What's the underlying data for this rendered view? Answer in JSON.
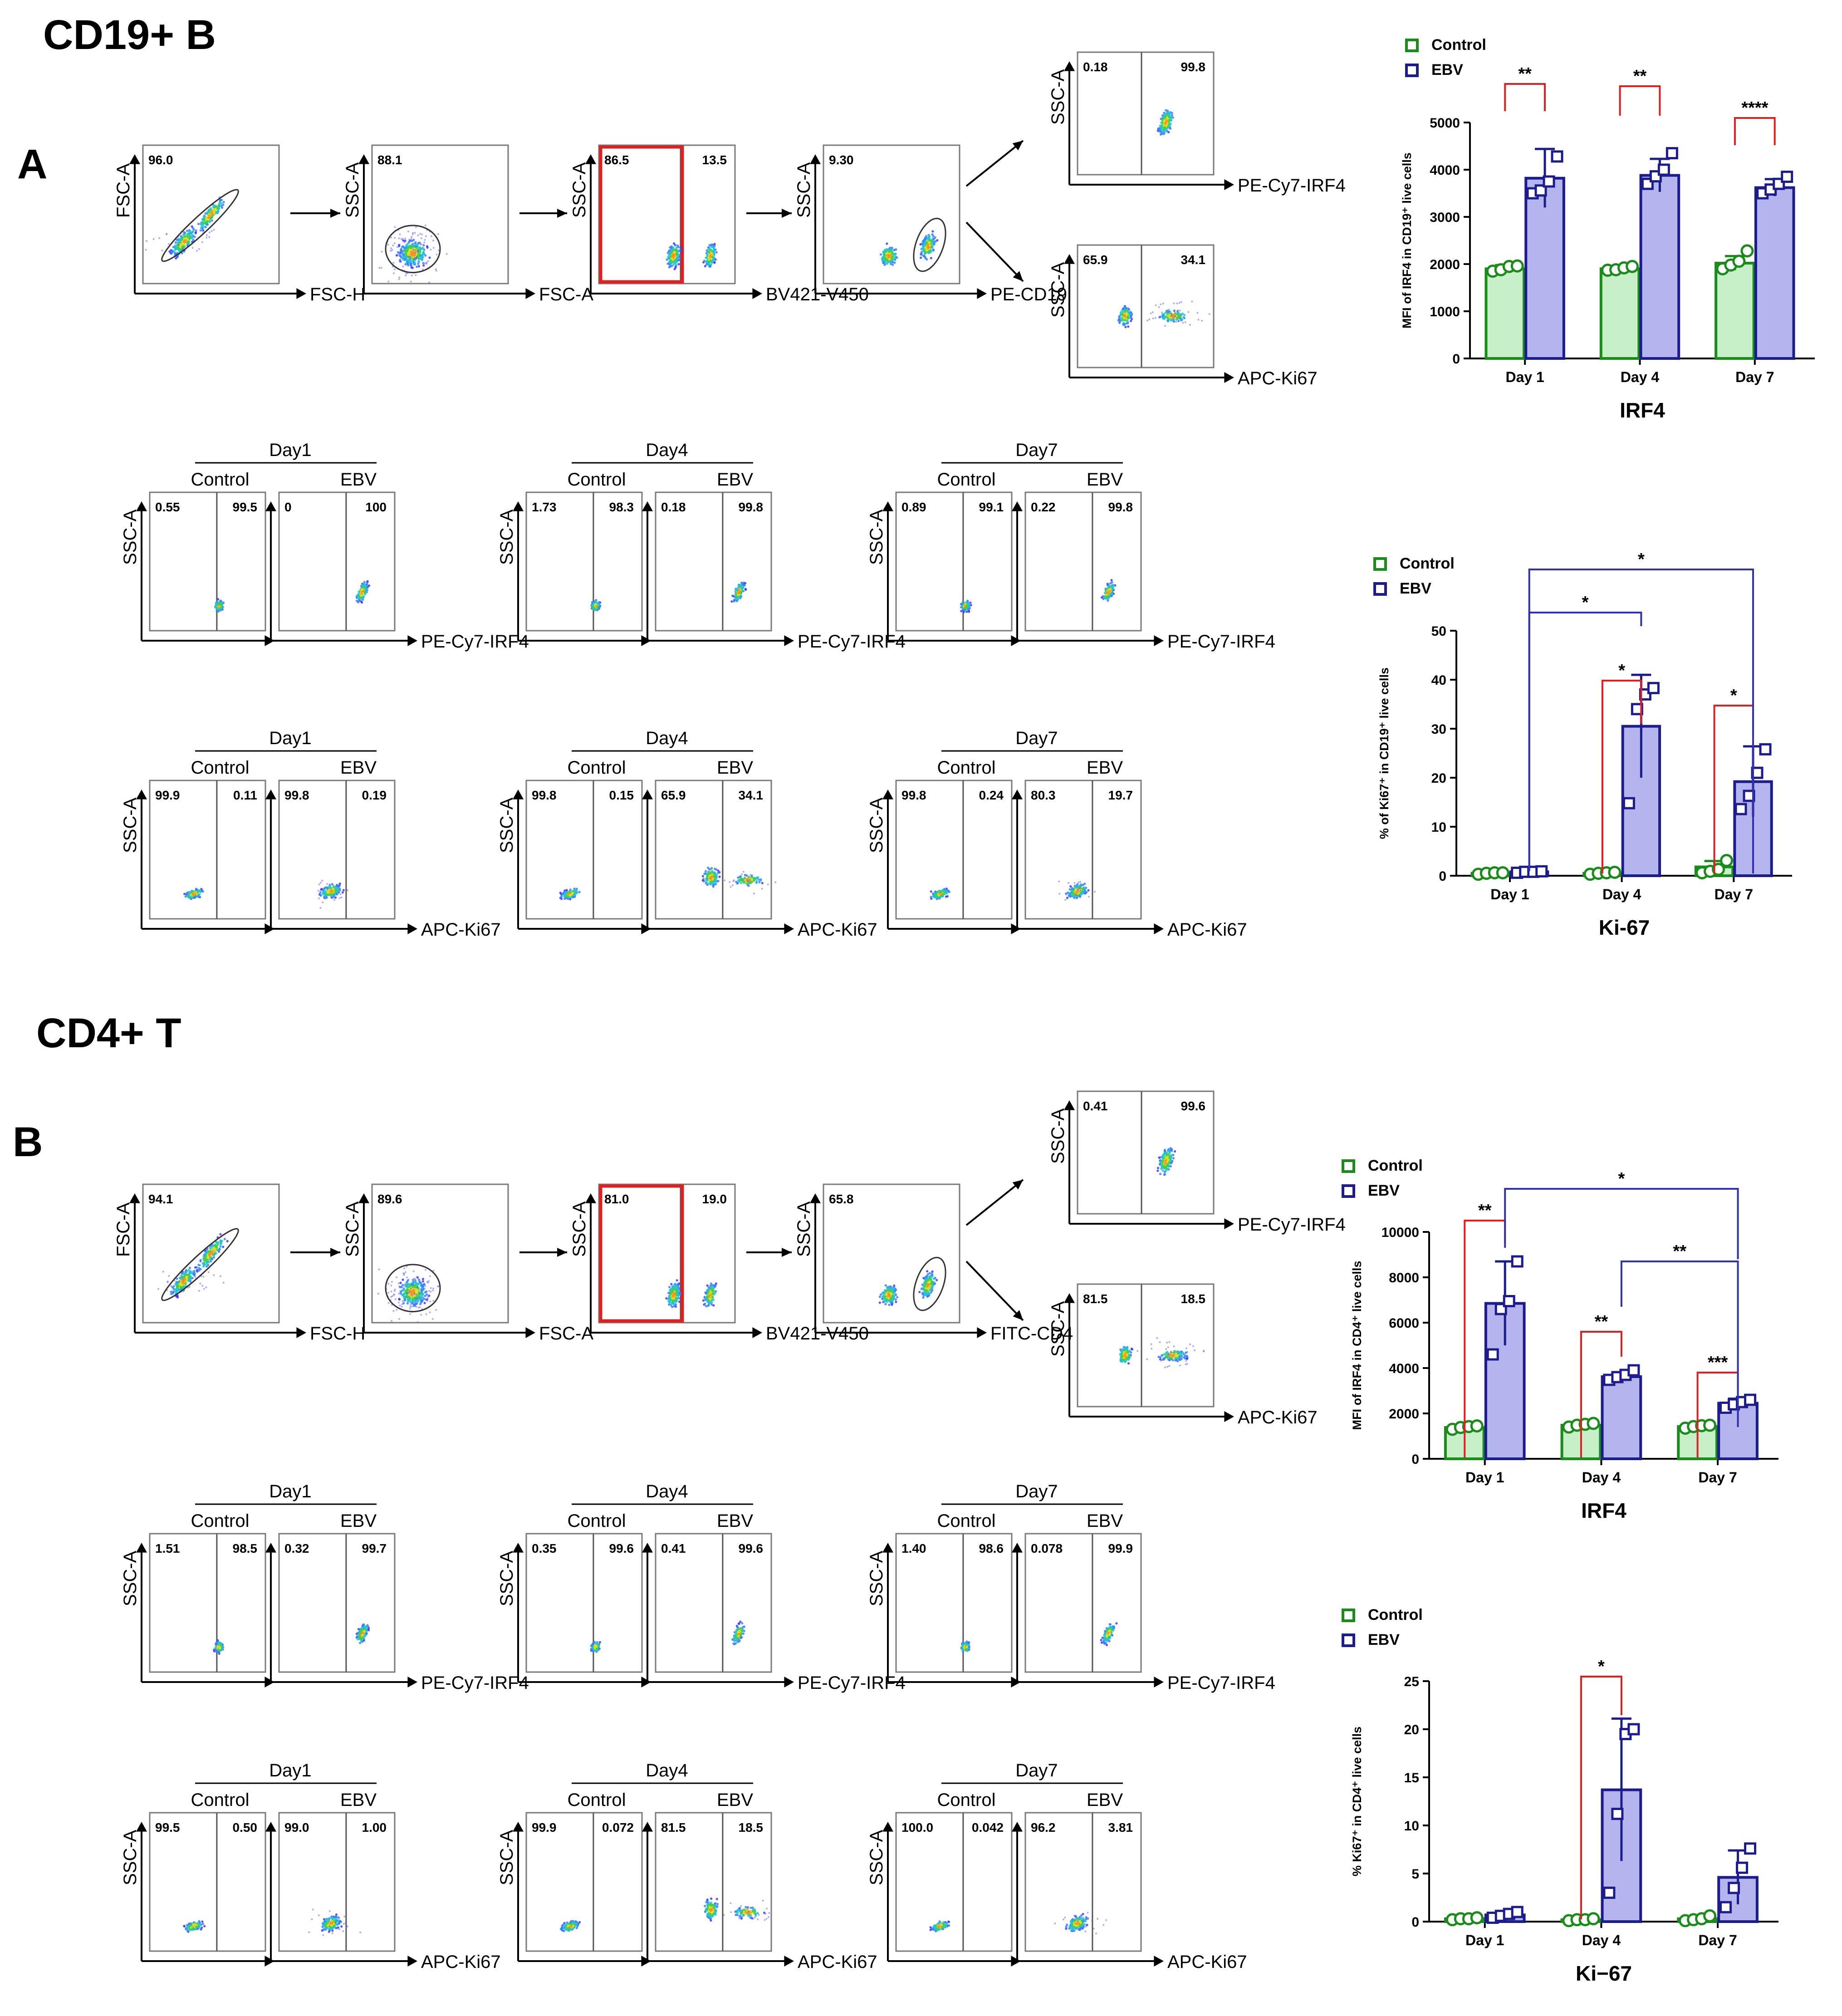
{
  "section_a": {
    "title": "CD19+ B",
    "letter": "A",
    "gating": [
      {
        "x_axis": "FSC-H",
        "y_axis": "FSC-A",
        "values": [
          "96.0"
        ],
        "red_box": false
      },
      {
        "x_axis": "FSC-A",
        "y_axis": "SSC-A",
        "values": [
          "88.1"
        ],
        "red_box": false
      },
      {
        "x_axis": "BV421-V450",
        "y_axis": "SSC-A",
        "values": [
          "86.5",
          "13.5"
        ],
        "red_box": true
      },
      {
        "x_axis": "PE-CD19",
        "y_axis": "SSC-A",
        "values": [
          "9.30"
        ],
        "red_box": false
      }
    ],
    "final_top": {
      "x_axis": "PE-Cy7-IRF4",
      "y_axis": "SSC-A",
      "values": [
        "0.18",
        "99.8"
      ]
    },
    "final_bottom": {
      "x_axis": "APC-Ki67",
      "y_axis": "SSC-A",
      "values": [
        "65.9",
        "34.1"
      ]
    },
    "irf4_rows": [
      {
        "day": "Day1",
        "control": "Control",
        "ebv": "EBV",
        "x_axis": "PE-Cy7-IRF4",
        "y_axis": "SSC-A",
        "ctrl_values": [
          "0.55",
          "99.5"
        ],
        "ebv_values": [
          "0",
          "100"
        ]
      },
      {
        "day": "Day4",
        "control": "Control",
        "ebv": "EBV",
        "x_axis": "PE-Cy7-IRF4",
        "y_axis": "SSC-A",
        "ctrl_values": [
          "1.73",
          "98.3"
        ],
        "ebv_values": [
          "0.18",
          "99.8"
        ]
      },
      {
        "day": "Day7",
        "control": "Control",
        "ebv": "EBV",
        "x_axis": "PE-Cy7-IRF4",
        "y_axis": "SSC-A",
        "ctrl_values": [
          "0.89",
          "99.1"
        ],
        "ebv_values": [
          "0.22",
          "99.8"
        ]
      }
    ],
    "ki67_rows": [
      {
        "day": "Day1",
        "control": "Control",
        "ebv": "EBV",
        "x_axis": "APC-Ki67",
        "y_axis": "SSC-A",
        "ctrl_values": [
          "99.9",
          "0.11"
        ],
        "ebv_values": [
          "99.8",
          "0.19"
        ]
      },
      {
        "day": "Day4",
        "control": "Control",
        "ebv": "EBV",
        "x_axis": "APC-Ki67",
        "y_axis": "SSC-A",
        "ctrl_values": [
          "99.8",
          "0.15"
        ],
        "ebv_values": [
          "65.9",
          "34.1"
        ]
      },
      {
        "day": "Day7",
        "control": "Control",
        "ebv": "EBV",
        "x_axis": "APC-Ki67",
        "y_axis": "SSC-A",
        "ctrl_values": [
          "99.8",
          "0.24"
        ],
        "ebv_values": [
          "80.3",
          "19.7"
        ]
      }
    ]
  },
  "section_b": {
    "title": "CD4+ T",
    "letter": "B",
    "gating": [
      {
        "x_axis": "FSC-H",
        "y_axis": "FSC-A",
        "values": [
          "94.1"
        ],
        "red_box": false
      },
      {
        "x_axis": "FSC-A",
        "y_axis": "SSC-A",
        "values": [
          "89.6"
        ],
        "red_box": false
      },
      {
        "x_axis": "BV421-V450",
        "y_axis": "SSC-A",
        "values": [
          "81.0",
          "19.0"
        ],
        "red_box": true
      },
      {
        "x_axis": "FITC-CD4",
        "y_axis": "SSC-A",
        "values": [
          "65.8"
        ],
        "red_box": false
      }
    ],
    "final_top": {
      "x_axis": "PE-Cy7-IRF4",
      "y_axis": "SSC-A",
      "values": [
        "0.41",
        "99.6"
      ]
    },
    "final_bottom": {
      "x_axis": "APC-Ki67",
      "y_axis": "SSC-A",
      "values": [
        "81.5",
        "18.5"
      ]
    },
    "irf4_rows": [
      {
        "day": "Day1",
        "control": "Control",
        "ebv": "EBV",
        "x_axis": "PE-Cy7-IRF4",
        "y_axis": "SSC-A",
        "ctrl_values": [
          "1.51",
          "98.5"
        ],
        "ebv_values": [
          "0.32",
          "99.7"
        ]
      },
      {
        "day": "Day4",
        "control": "Control",
        "ebv": "EBV",
        "x_axis": "PE-Cy7-IRF4",
        "y_axis": "SSC-A",
        "ctrl_values": [
          "0.35",
          "99.6"
        ],
        "ebv_values": [
          "0.41",
          "99.6"
        ]
      },
      {
        "day": "Day7",
        "control": "Control",
        "ebv": "EBV",
        "x_axis": "PE-Cy7-IRF4",
        "y_axis": "SSC-A",
        "ctrl_values": [
          "1.40",
          "98.6"
        ],
        "ebv_values": [
          "0.078",
          "99.9"
        ]
      }
    ],
    "ki67_rows": [
      {
        "day": "Day1",
        "control": "Control",
        "ebv": "EBV",
        "x_axis": "APC-Ki67",
        "y_axis": "SSC-A",
        "ctrl_values": [
          "99.5",
          "0.50"
        ],
        "ebv_values": [
          "99.0",
          "1.00"
        ]
      },
      {
        "day": "Day4",
        "control": "Control",
        "ebv": "EBV",
        "x_axis": "APC-Ki67",
        "y_axis": "SSC-A",
        "ctrl_values": [
          "99.9",
          "0.072"
        ],
        "ebv_values": [
          "81.5",
          "18.5"
        ]
      },
      {
        "day": "Day7",
        "control": "Control",
        "ebv": "EBV",
        "x_axis": "APC-Ki67",
        "y_axis": "SSC-A",
        "ctrl_values": [
          "100.0",
          "0.042"
        ],
        "ebv_values": [
          "96.2",
          "3.81"
        ]
      }
    ]
  },
  "colors": {
    "control_edge": "#1a8c1a",
    "control_fill": "#c8f0c8",
    "ebv_edge": "#1c1c8c",
    "ebv_fill": "#b4b4ee",
    "sig_red": "#e02020",
    "sig_blue": "#3030b0",
    "gate_red": "#e02020"
  },
  "chart_data": [
    {
      "type": "bar",
      "title": "IRF4",
      "ylabel": "MFI of IRF4 in CD19⁺ live cells",
      "categories": [
        "Day 1",
        "Day 4",
        "Day 7"
      ],
      "ylim": [
        0,
        5000
      ],
      "yticks": [
        0,
        1000,
        2000,
        3000,
        4000,
        5000
      ],
      "legend": [
        "Control",
        "EBV"
      ],
      "series": [
        {
          "name": "Control",
          "values": [
            1900,
            1900,
            2020
          ],
          "sd": [
            80,
            60,
            150
          ],
          "points": [
            [
              1850,
              1880,
              1950,
              1960
            ],
            [
              1870,
              1880,
              1920,
              1950
            ],
            [
              1900,
              1980,
              2060,
              2280
            ]
          ]
        },
        {
          "name": "EBV",
          "values": [
            3820,
            3880,
            3620
          ],
          "sd": [
            620,
            350,
            180
          ],
          "points": [
            [
              3500,
              3560,
              3750,
              4280
            ],
            [
              3700,
              3860,
              4000,
              4350
            ],
            [
              3500,
              3580,
              3700,
              3850
            ]
          ]
        }
      ],
      "significance": [
        {
          "label": "**",
          "from": [
            0,
            0
          ],
          "to": [
            0,
            1
          ],
          "color": "red"
        },
        {
          "label": "**",
          "from": [
            1,
            0
          ],
          "to": [
            1,
            1
          ],
          "color": "red"
        },
        {
          "label": "****",
          "from": [
            2,
            0
          ],
          "to": [
            2,
            1
          ],
          "color": "red"
        }
      ]
    },
    {
      "type": "bar",
      "title": "Ki-67",
      "ylabel": "% of Ki67⁺ in CD19⁺ live cells",
      "categories": [
        "Day 1",
        "Day 4",
        "Day 7"
      ],
      "ylim": [
        0,
        50
      ],
      "yticks": [
        0,
        10,
        20,
        30,
        40,
        50
      ],
      "legend": [
        "Control",
        "EBV"
      ],
      "series": [
        {
          "name": "Control",
          "values": [
            0.5,
            0.5,
            1.8
          ],
          "sd": [
            0.2,
            0.2,
            1.2
          ],
          "points": [
            [
              0.3,
              0.5,
              0.6,
              0.6
            ],
            [
              0.3,
              0.5,
              0.6,
              0.7
            ],
            [
              0.6,
              0.9,
              1.3,
              3.1
            ]
          ]
        },
        {
          "name": "EBV",
          "values": [
            0.8,
            30.5,
            19.2
          ],
          "sd": [
            0.2,
            10.5,
            7.2
          ],
          "points": [
            [
              0.6,
              0.8,
              0.8,
              0.9
            ],
            [
              14.8,
              34.0,
              37.0,
              38.3
            ],
            [
              13.6,
              16.3,
              21.0,
              25.8
            ]
          ]
        }
      ],
      "significance": [
        {
          "label": "*",
          "from": [
            1,
            0
          ],
          "to": [
            1,
            1
          ],
          "color": "red"
        },
        {
          "label": "*",
          "from": [
            2,
            0
          ],
          "to": [
            2,
            1
          ],
          "color": "red"
        },
        {
          "label": "*",
          "from": [
            0,
            1
          ],
          "to": [
            1,
            1
          ],
          "color": "blue"
        },
        {
          "label": "*",
          "from": [
            0,
            1
          ],
          "to": [
            2,
            1
          ],
          "color": "blue"
        }
      ]
    },
    {
      "type": "bar",
      "title": "IRF4",
      "ylabel": "MFI of IRF4 in CD4⁺ live cells",
      "categories": [
        "Day 1",
        "Day 4",
        "Day 7"
      ],
      "ylim": [
        0,
        10000
      ],
      "yticks": [
        0,
        2000,
        4000,
        6000,
        8000,
        10000
      ],
      "legend": [
        "Control",
        "EBV"
      ],
      "series": [
        {
          "name": "Control",
          "values": [
            1380,
            1480,
            1420
          ],
          "sd": [
            120,
            120,
            100
          ],
          "points": [
            [
              1300,
              1380,
              1420,
              1450
            ],
            [
              1400,
              1480,
              1520,
              1560
            ],
            [
              1350,
              1420,
              1460,
              1480
            ]
          ]
        },
        {
          "name": "EBV",
          "values": [
            6850,
            3620,
            2450
          ],
          "sd": [
            1850,
            200,
            200
          ],
          "points": [
            [
              4600,
              6600,
              6950,
              8700
            ],
            [
              3480,
              3600,
              3700,
              3900
            ],
            [
              2250,
              2400,
              2500,
              2600
            ]
          ]
        }
      ],
      "significance": [
        {
          "label": "**",
          "from": [
            0,
            0
          ],
          "to": [
            0,
            1
          ],
          "color": "red"
        },
        {
          "label": "**",
          "from": [
            1,
            0
          ],
          "to": [
            1,
            1
          ],
          "color": "red"
        },
        {
          "label": "***",
          "from": [
            2,
            0
          ],
          "to": [
            2,
            1
          ],
          "color": "red"
        },
        {
          "label": "*",
          "from": [
            0,
            1
          ],
          "to": [
            2,
            1
          ],
          "color": "blue"
        },
        {
          "label": "**",
          "from": [
            1,
            1
          ],
          "to": [
            2,
            1
          ],
          "color": "blue"
        }
      ]
    },
    {
      "type": "bar",
      "title": "Ki−67",
      "ylabel": "% Ki67⁺ in CD4⁺ live cells",
      "categories": [
        "Day 1",
        "Day 4",
        "Day 7"
      ],
      "ylim": [
        0,
        25
      ],
      "yticks": [
        0,
        5,
        10,
        15,
        20,
        25
      ],
      "legend": [
        "Control",
        "EBV"
      ],
      "series": [
        {
          "name": "Control",
          "values": [
            0.3,
            0.2,
            0.3
          ],
          "sd": [
            0.1,
            0.1,
            0.2
          ],
          "points": [
            [
              0.2,
              0.3,
              0.3,
              0.4
            ],
            [
              0.1,
              0.2,
              0.2,
              0.3
            ],
            [
              0.1,
              0.2,
              0.3,
              0.6
            ]
          ]
        },
        {
          "name": "EBV",
          "values": [
            0.7,
            13.7,
            4.6
          ],
          "sd": [
            0.3,
            7.4,
            2.8
          ],
          "points": [
            [
              0.4,
              0.6,
              0.8,
              1.0
            ],
            [
              3.0,
              11.2,
              19.5,
              20.0
            ],
            [
              1.5,
              3.5,
              5.6,
              7.6
            ]
          ]
        }
      ],
      "significance": [
        {
          "label": "*",
          "from": [
            1,
            0
          ],
          "to": [
            1,
            1
          ],
          "color": "red"
        }
      ]
    }
  ]
}
